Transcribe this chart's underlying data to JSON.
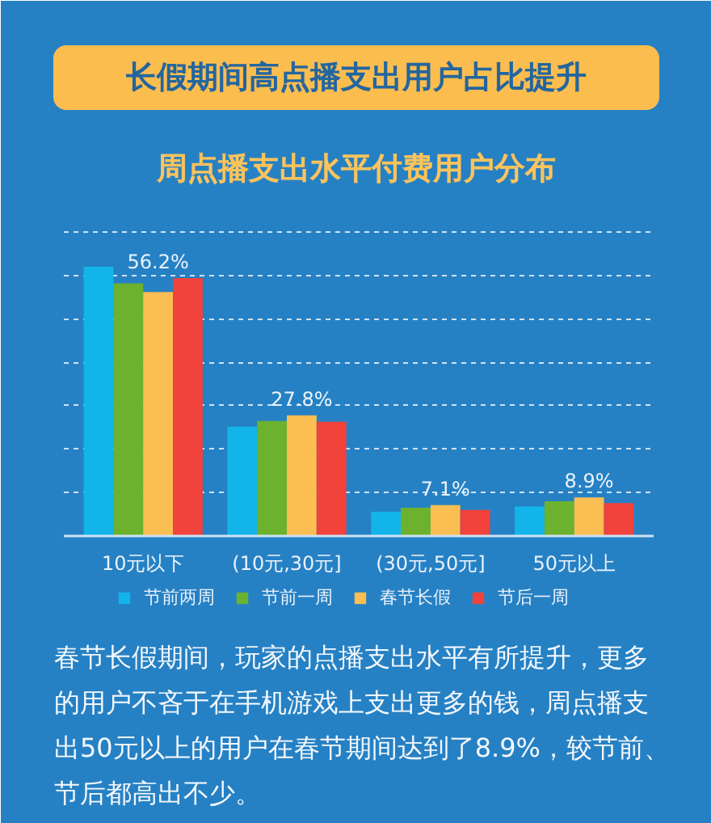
{
  "chart_data": {
    "type": "bar",
    "title": "长假期间高点播支出用户占比提升",
    "subtitle": "周点播支出水平付费用户分布",
    "categories": [
      "10元以下",
      "(10元,30元]",
      "(30元,50元]",
      "50元以上"
    ],
    "series": [
      {
        "name": "节前两周",
        "color": "#13b4ea",
        "values": [
          62.0,
          25.2,
          5.6,
          6.8
        ]
      },
      {
        "name": "节前一周",
        "color": "#6cb22f",
        "values": [
          58.2,
          26.5,
          6.5,
          8.0
        ]
      },
      {
        "name": "春节长假",
        "color": "#fbbe52",
        "values": [
          56.2,
          27.8,
          7.1,
          8.9
        ],
        "value_labels": [
          "56.2%",
          "27.8%",
          "7.1%",
          "8.9%"
        ]
      },
      {
        "name": "节后一周",
        "color": "#f1423b",
        "values": [
          59.4,
          26.3,
          6.0,
          7.6
        ]
      }
    ],
    "ylim": [
      0,
      70
    ],
    "yticks": [
      {
        "value": 10,
        "label": null
      },
      {
        "value": 20,
        "label": null
      },
      {
        "value": 30,
        "label": null
      },
      {
        "value": 40,
        "label": null
      },
      {
        "value": 50,
        "label": null
      },
      {
        "value": 60,
        "label": null
      },
      {
        "value": 70,
        "label": null
      }
    ],
    "grid": "y",
    "tick_labels": "x",
    "legend": "bottom",
    "annotations": [
      "春节长假期间，玩家的点播支出水平有所提升，更多的用户不吝于在手机游戏上支出更多的钱，周点播支出50元以上的用户在春节期间达到了8.9%，较节前、节后都高出不少。"
    ]
  }
}
